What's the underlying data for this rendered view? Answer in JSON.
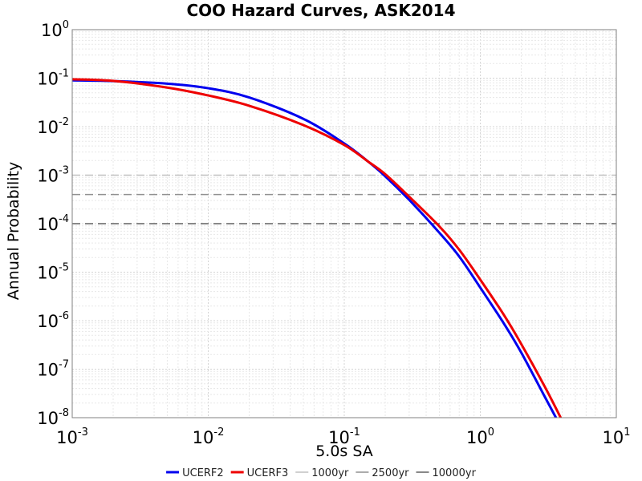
{
  "chart_data": {
    "type": "line",
    "title": "COO Hazard Curves, ASK2014",
    "xlabel": "5.0s SA",
    "ylabel": "Annual Probability",
    "xscale": "log",
    "yscale": "log",
    "xlim": [
      0.001,
      10
    ],
    "ylim": [
      1e-08,
      1
    ],
    "grid": true,
    "legend_position": "bottom",
    "x_ticks": [
      {
        "base": "10",
        "exp": "-3"
      },
      {
        "base": "10",
        "exp": "-2"
      },
      {
        "base": "10",
        "exp": "-1"
      },
      {
        "base": "10",
        "exp": "0"
      },
      {
        "base": "10",
        "exp": "1"
      }
    ],
    "y_ticks": [
      {
        "base": "10",
        "exp": "0"
      },
      {
        "base": "10",
        "exp": "-1"
      },
      {
        "base": "10",
        "exp": "-2"
      },
      {
        "base": "10",
        "exp": "-3"
      },
      {
        "base": "10",
        "exp": "-4"
      },
      {
        "base": "10",
        "exp": "-5"
      },
      {
        "base": "10",
        "exp": "-6"
      },
      {
        "base": "10",
        "exp": "-7"
      },
      {
        "base": "10",
        "exp": "-8"
      }
    ],
    "series": [
      {
        "name": "UCERF2",
        "color": "#0000ee",
        "style": "solid",
        "x": [
          0.001,
          0.002,
          0.005,
          0.01,
          0.02,
          0.05,
          0.1,
          0.15,
          0.2,
          0.3,
          0.5,
          0.7,
          1.0,
          1.5,
          2.0,
          3.0,
          3.6
        ],
        "y": [
          0.09,
          0.087,
          0.077,
          0.062,
          0.04,
          0.0145,
          0.0045,
          0.0019,
          0.00095,
          0.00031,
          6.5e-05,
          2.1e-05,
          4.8e-06,
          8.5e-07,
          2.2e-07,
          2.6e-08,
          1e-08
        ]
      },
      {
        "name": "UCERF3",
        "color": "#ee0000",
        "style": "solid",
        "x": [
          0.001,
          0.002,
          0.005,
          0.01,
          0.02,
          0.05,
          0.1,
          0.15,
          0.2,
          0.3,
          0.5,
          0.7,
          1.0,
          1.5,
          2.0,
          3.0,
          3.9
        ],
        "y": [
          0.095,
          0.088,
          0.064,
          0.044,
          0.027,
          0.0108,
          0.0042,
          0.0019,
          0.00105,
          0.00036,
          8.8e-05,
          2.9e-05,
          7e-06,
          1.28e-06,
          3.3e-07,
          4.2e-08,
          1e-08
        ]
      },
      {
        "name": "1000yr",
        "color": "#c0c0c0",
        "style": "dashed",
        "y_constant": 0.001
      },
      {
        "name": "2500yr",
        "color": "#909090",
        "style": "dashed",
        "y_constant": 0.0004
      },
      {
        "name": "10000yr",
        "color": "#606060",
        "style": "dashed",
        "y_constant": 0.0001
      }
    ]
  }
}
